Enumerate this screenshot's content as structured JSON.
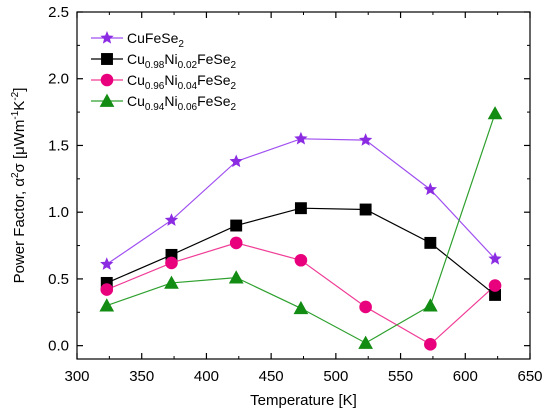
{
  "chart_data": {
    "type": "line",
    "title": "",
    "xlabel": "Temperature [K]",
    "ylabel": {
      "parts": [
        {
          "text": "Power Factor, α",
          "baseline": "normal"
        },
        {
          "text": "2",
          "baseline": "super"
        },
        {
          "text": "σ [μWm",
          "baseline": "normal"
        },
        {
          "text": "-1",
          "baseline": "super"
        },
        {
          "text": "K",
          "baseline": "normal"
        },
        {
          "text": "-2",
          "baseline": "super"
        },
        {
          "text": "]",
          "baseline": "normal"
        }
      ]
    },
    "xlim": [
      300,
      650
    ],
    "ylim": [
      -0.1,
      2.5
    ],
    "xticks": [
      300,
      350,
      400,
      450,
      500,
      550,
      600,
      650
    ],
    "yticks": [
      0.0,
      0.5,
      1.0,
      1.5,
      2.0,
      2.5
    ],
    "ytick_labels": [
      "0.0",
      "0.5",
      "1.0",
      "1.5",
      "2.0",
      "2.5"
    ],
    "grid": false,
    "legend_position": "top-left",
    "x": [
      323,
      373,
      423,
      473,
      523,
      573,
      623
    ],
    "series": [
      {
        "name": "CuFeSe2",
        "label_parts": [
          {
            "text": "CuFeSe",
            "baseline": "normal"
          },
          {
            "text": "2",
            "baseline": "sub"
          }
        ],
        "marker": "star",
        "color": "#8B2BE2",
        "line_color": "#A050F0",
        "values": [
          0.61,
          0.94,
          1.38,
          1.55,
          1.54,
          1.17,
          0.65
        ]
      },
      {
        "name": "Cu0.98Ni0.02FeSe2",
        "label_parts": [
          {
            "text": "Cu",
            "baseline": "normal"
          },
          {
            "text": "0.98",
            "baseline": "sub"
          },
          {
            "text": "Ni",
            "baseline": "normal"
          },
          {
            "text": "0.02",
            "baseline": "sub"
          },
          {
            "text": "FeSe",
            "baseline": "normal"
          },
          {
            "text": "2",
            "baseline": "sub"
          }
        ],
        "marker": "square",
        "color": "#000000",
        "line_color": "#000000",
        "values": [
          0.47,
          0.68,
          0.9,
          1.03,
          1.02,
          0.77,
          0.38
        ]
      },
      {
        "name": "Cu0.96Ni0.04FeSe2",
        "label_parts": [
          {
            "text": "Cu",
            "baseline": "normal"
          },
          {
            "text": "0.96",
            "baseline": "sub"
          },
          {
            "text": "Ni",
            "baseline": "normal"
          },
          {
            "text": "0.04",
            "baseline": "sub"
          },
          {
            "text": "FeSe",
            "baseline": "normal"
          },
          {
            "text": "2",
            "baseline": "sub"
          }
        ],
        "marker": "circle",
        "color": "#E8007D",
        "line_color": "#F03C96",
        "values": [
          0.42,
          0.62,
          0.77,
          0.64,
          0.29,
          0.01,
          0.45
        ]
      },
      {
        "name": "Cu0.94Ni0.06FeSe2",
        "label_parts": [
          {
            "text": "Cu",
            "baseline": "normal"
          },
          {
            "text": "0.94",
            "baseline": "sub"
          },
          {
            "text": "Ni",
            "baseline": "normal"
          },
          {
            "text": "0.06",
            "baseline": "sub"
          },
          {
            "text": "FeSe",
            "baseline": "normal"
          },
          {
            "text": "2",
            "baseline": "sub"
          }
        ],
        "marker": "triangle",
        "color": "#138C13",
        "line_color": "#2EA02E",
        "values": [
          0.3,
          0.47,
          0.51,
          0.28,
          0.02,
          0.3,
          1.74
        ]
      }
    ]
  }
}
